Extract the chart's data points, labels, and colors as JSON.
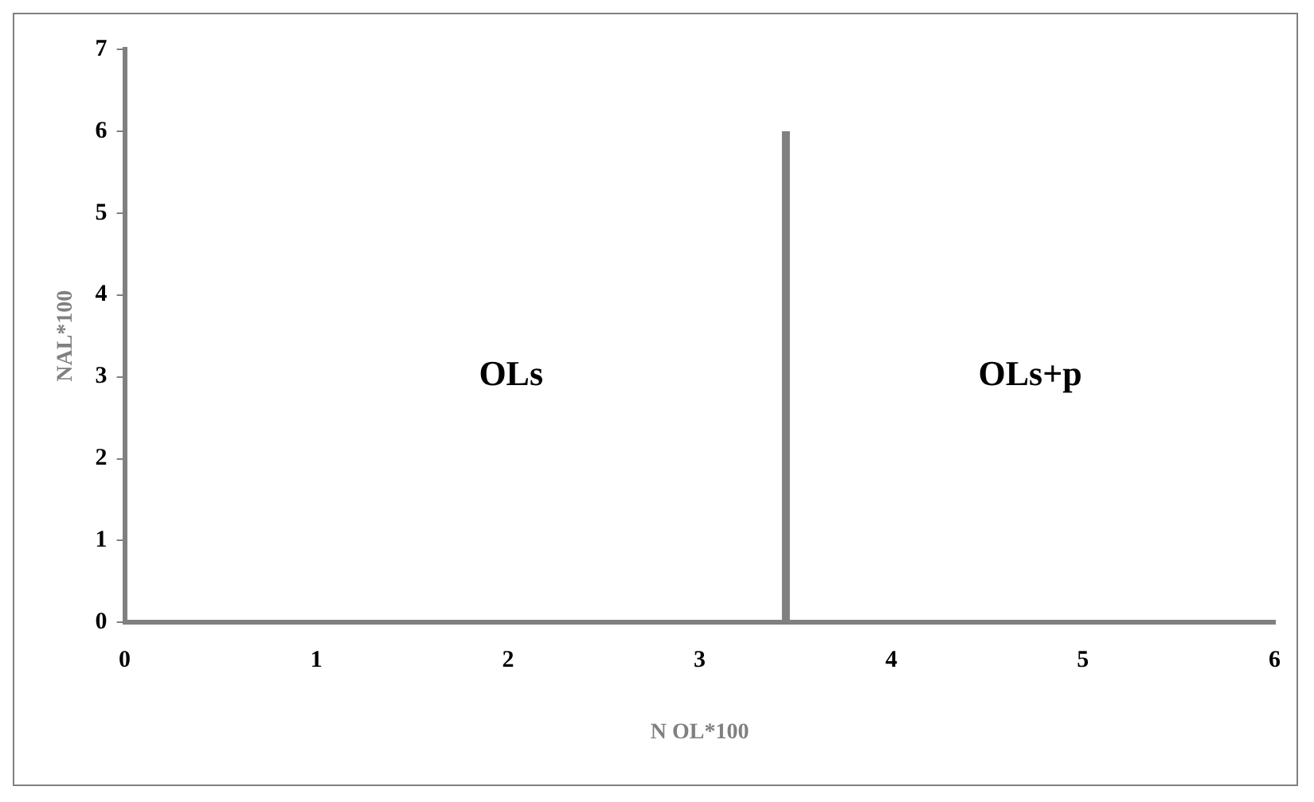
{
  "chart_data": {
    "type": "line",
    "xlabel": "N OL*100",
    "ylabel": "NAL*100",
    "xlim": [
      0,
      6
    ],
    "xticks": [
      0,
      1,
      2,
      3,
      4,
      5,
      6
    ],
    "ylim": [
      0,
      7
    ],
    "yticks": [
      0,
      1,
      2,
      3,
      4,
      5,
      6,
      7
    ],
    "series": [
      {
        "color": "#808080",
        "x": [
          3.45,
          3.45
        ],
        "values": [
          0,
          6
        ]
      }
    ],
    "annotations": [
      "OLs",
      "OLs+p"
    ],
    "grid": false,
    "legend": false,
    "marker": "none",
    "line_style": "solid"
  }
}
